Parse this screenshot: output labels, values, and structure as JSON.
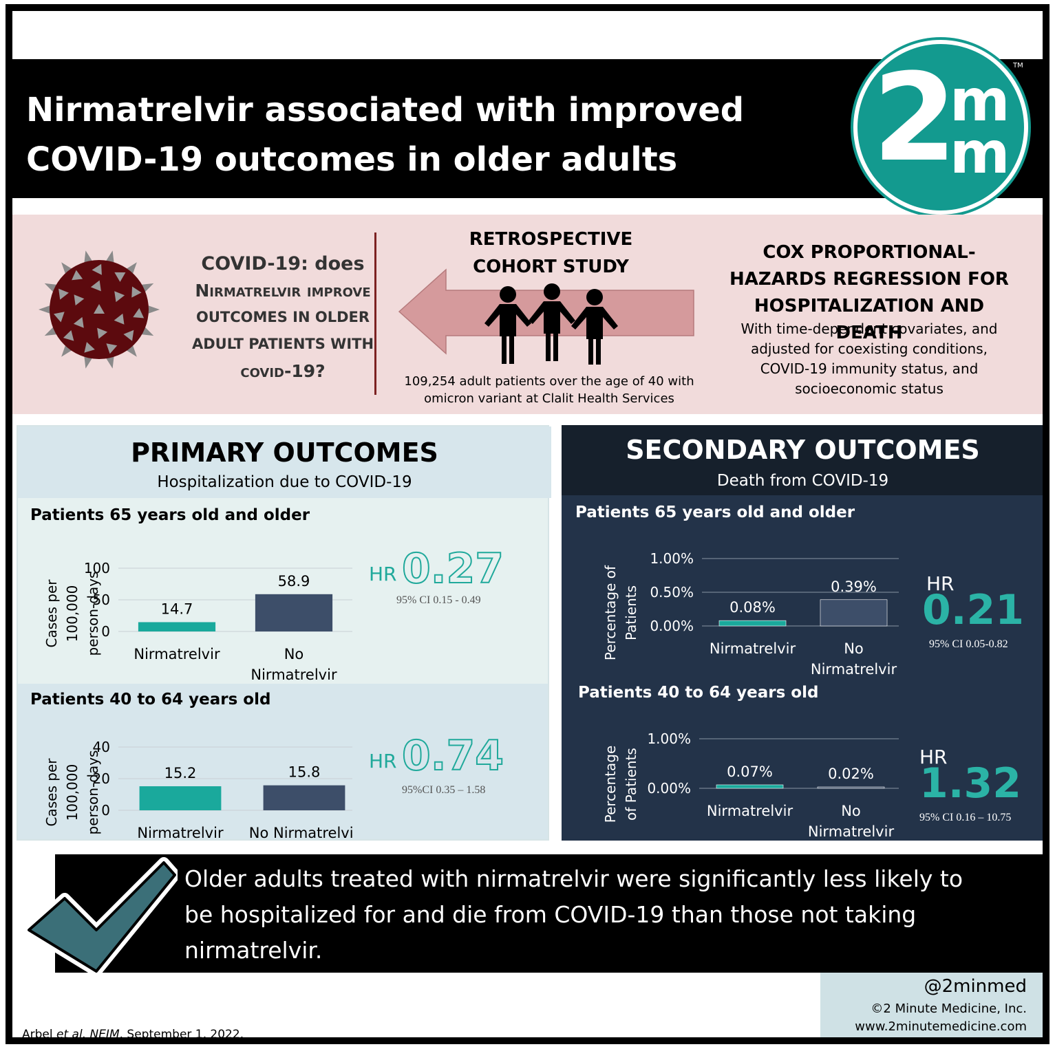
{
  "header": {
    "title_line1": "Nirmatrelvir associated with improved",
    "title_line2": "COVID-19 outcomes in older adults",
    "logo": {
      "number": "2",
      "letter_top": "m",
      "letter_bottom": "m",
      "tm": "TM",
      "color": "#139a8f"
    }
  },
  "study": {
    "question_line1": "COVID-19: does",
    "question_line2": "Nirmatrelvir improve",
    "question_line3": "outcomes in older",
    "question_line4": "adult patients with",
    "question_line5": "covid-19?",
    "design_line1": "RETROSPECTIVE",
    "design_line2": "COHORT STUDY",
    "cohort_line1": "109,254 adult patients over the age of 40 with",
    "cohort_line2": "omicron variant at Clalit Health Services",
    "method_title_line1": "COX PROPORTIONAL-",
    "method_title_line2": "HAZARDS REGRESSION FOR",
    "method_title_line3": "HOSPITALIZATION AND DEATH",
    "method_desc_line1": "With time-dependent covariates, and",
    "method_desc_line2": "adjusted for coexisting conditions,",
    "method_desc_line3": "COVID-19 immunity status, and",
    "method_desc_line4": "socioeconomic status",
    "icons": [
      "virus-icon",
      "left-arrow-icon",
      "people-icon"
    ]
  },
  "primary": {
    "title": "PRIMARY OUTCOMES",
    "subtitle": "Hospitalization due to COVID-19",
    "group1": {
      "label": "Patients 65 years old and older",
      "hr_word": "HR",
      "hr_value": "0.27",
      "ci": "95% CI 0.15 - 0.49"
    },
    "group2": {
      "label": "Patients 40 to 64 years old",
      "hr_word": "HR",
      "hr_value": "0.74",
      "ci": "95%CI 0.35 – 1.58"
    }
  },
  "secondary": {
    "title": "SECONDARY OUTCOMES",
    "subtitle": "Death from COVID-19",
    "group1": {
      "label": "Patients 65 years old and older",
      "hr_word": "HR",
      "hr_value": "0.21",
      "ci": "95% CI 0.05-0.82"
    },
    "group2": {
      "label": "Patients 40 to 64 years old",
      "hr_word": "HR",
      "hr_value": "1.32",
      "ci": "95% CI 0.16 – 10.75"
    }
  },
  "chart_data": [
    {
      "type": "bar",
      "ylabel": [
        "Cases per",
        "100,000",
        "person-days"
      ],
      "categories": [
        [
          "Nirmatrelvir"
        ],
        [
          "No",
          "Nirmatrelvir"
        ]
      ],
      "values": [
        14.7,
        58.9
      ],
      "value_labels": [
        "14.7",
        "58.9"
      ],
      "yticks": [
        "0",
        "50",
        "100"
      ],
      "ylim": [
        0,
        100
      ],
      "colors": [
        "#1aa99c",
        "#3d4e69"
      ],
      "grid": true
    },
    {
      "type": "bar",
      "ylabel": [
        "Cases per",
        "100,000",
        "person-days"
      ],
      "categories": [
        [
          "Nirmatrelvir"
        ],
        [
          "No Nirmatrelvir"
        ]
      ],
      "values": [
        15.2,
        15.8
      ],
      "value_labels": [
        "15.2",
        "15.8"
      ],
      "yticks": [
        "0",
        "20",
        "40"
      ],
      "ylim": [
        0,
        40
      ],
      "colors": [
        "#1aa99c",
        "#3d4e69"
      ],
      "grid": true
    },
    {
      "type": "bar",
      "ylabel": [
        "Percentage of",
        "Patients"
      ],
      "categories": [
        [
          "Nirmatrelvir"
        ],
        [
          "No",
          "Nirmatrelvir"
        ]
      ],
      "values": [
        0.08,
        0.39
      ],
      "value_labels": [
        "0.08%",
        "0.39%"
      ],
      "yticks": [
        "0.00%",
        "0.50%",
        "1.00%"
      ],
      "ylim": [
        0,
        1
      ],
      "colors": [
        "#1aa99c",
        "#3d4e69"
      ],
      "grid": true
    },
    {
      "type": "bar",
      "ylabel": [
        "Percentage",
        "of Patients"
      ],
      "categories": [
        [
          "Nirmatrelvir"
        ],
        [
          "No",
          "Nirmatrelvir"
        ]
      ],
      "values": [
        0.07,
        0.02
      ],
      "value_labels": [
        "0.07%",
        "0.02%"
      ],
      "yticks": [
        "0.00%",
        "1.00%"
      ],
      "ylim": [
        0,
        1
      ],
      "colors": [
        "#1aa99c",
        "#3d4e69"
      ],
      "grid": true
    }
  ],
  "conclusion": {
    "line1": "Older adults treated with nirmatrelvir were significantly less likely to",
    "line2": "be hospitalized for and die from COVID-19 than those not taking",
    "line3": "nirmatrelvir.",
    "icon": "checkmark-icon"
  },
  "footer": {
    "handle": "@2minmed",
    "copyright": "©2 Minute Medicine, Inc.",
    "website": "www.2minutemedicine.com",
    "citation_pre": "Arbel ",
    "citation_italic": "et al. NEJM",
    "citation_post": ". September 1, 2022."
  },
  "colors": {
    "teal": "#1aa99c",
    "slate": "#3d4e69",
    "navy_panel": "#233349",
    "pink_band": "#f1dbdb",
    "light_blue_panel": "#e6f1f0"
  }
}
